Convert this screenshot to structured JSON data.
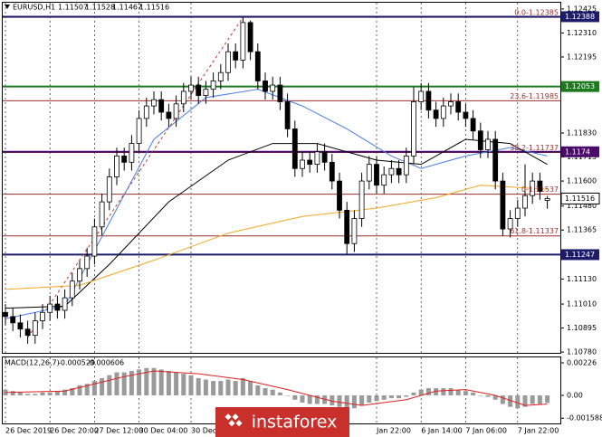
{
  "chart_data": {
    "type": "candlestick",
    "title": "EURUSD,H1",
    "open": [
      1.1097,
      1.1095,
      1.1092,
      1.1089,
      1.1086,
      1.1093,
      1.1097,
      1.1101,
      1.1098,
      1.1104,
      1.1112,
      1.1118,
      1.1124,
      1.1138,
      1.115,
      1.1162,
      1.1172,
      1.1169,
      1.1178,
      1.119,
      1.1196,
      1.1199,
      1.1193,
      1.119,
      1.1197,
      1.1203,
      1.1206,
      1.1201,
      1.1204,
      1.1208,
      1.1212,
      1.1222,
      1.1218,
      1.1236,
      1.1222,
      1.1208,
      1.1203,
      1.1206,
      1.1198,
      1.1185,
      1.1166,
      1.117,
      1.1168,
      1.1174,
      1.1169,
      1.116,
      1.1146,
      1.113,
      1.1142,
      1.116,
      1.1168,
      1.1158,
      1.1163,
      1.1166,
      1.1163,
      1.1172,
      1.1198,
      1.1203,
      1.1194,
      1.119,
      1.1196,
      1.1198,
      1.1193,
      1.119,
      1.1184,
      1.1175,
      1.118,
      1.116,
      1.1137,
      1.1142,
      1.1147,
      1.1153,
      1.116,
      1.11507
    ],
    "high": [
      1.1101,
      1.1099,
      1.1096,
      1.1093,
      1.1097,
      1.1101,
      1.1105,
      1.1105,
      1.1108,
      1.1116,
      1.1122,
      1.1128,
      1.1142,
      1.1154,
      1.1166,
      1.1176,
      1.1176,
      1.1182,
      1.1194,
      1.12,
      1.1203,
      1.1203,
      1.1197,
      1.1201,
      1.1207,
      1.121,
      1.121,
      1.1208,
      1.1212,
      1.1216,
      1.1226,
      1.1226,
      1.12385,
      1.1237,
      1.1226,
      1.1212,
      1.121,
      1.121,
      1.1202,
      1.1189,
      1.1174,
      1.1174,
      1.1178,
      1.1178,
      1.1173,
      1.1164,
      1.115,
      1.1146,
      1.1164,
      1.1172,
      1.1172,
      1.1167,
      1.117,
      1.117,
      1.1176,
      1.1205,
      1.1207,
      1.1207,
      1.1198,
      1.12,
      1.1202,
      1.1202,
      1.1197,
      1.1194,
      1.1188,
      1.1184,
      1.1184,
      1.1164,
      1.1146,
      1.1151,
      1.1168,
      1.1164,
      1.1164,
      1.11528
    ],
    "low": [
      1.1091,
      1.1088,
      1.1085,
      1.1082,
      1.1082,
      1.1089,
      1.1093,
      1.1094,
      1.1094,
      1.11,
      1.1108,
      1.1114,
      1.112,
      1.1134,
      1.1146,
      1.1158,
      1.1165,
      1.1165,
      1.1174,
      1.1186,
      1.1192,
      1.1189,
      1.1186,
      1.1186,
      1.1193,
      1.1199,
      1.1197,
      1.1197,
      1.12,
      1.1204,
      1.1208,
      1.1214,
      1.1214,
      1.1218,
      1.1204,
      1.1199,
      1.1199,
      1.1194,
      1.1181,
      1.1162,
      1.1162,
      1.1164,
      1.1164,
      1.1165,
      1.1156,
      1.1142,
      1.1125,
      1.1126,
      1.1138,
      1.1156,
      1.1154,
      1.1154,
      1.1159,
      1.1159,
      1.1159,
      1.1168,
      1.1194,
      1.119,
      1.1186,
      1.1186,
      1.1192,
      1.1189,
      1.1186,
      1.118,
      1.1171,
      1.1171,
      1.1156,
      1.11337,
      1.1133,
      1.1138,
      1.1143,
      1.1149,
      1.1151,
      1.11467
    ],
    "close": [
      1.1095,
      1.1092,
      1.1089,
      1.1086,
      1.1093,
      1.1097,
      1.1101,
      1.1098,
      1.1104,
      1.1112,
      1.1118,
      1.1124,
      1.1138,
      1.115,
      1.1162,
      1.1172,
      1.1169,
      1.1178,
      1.119,
      1.1196,
      1.1199,
      1.1193,
      1.119,
      1.1197,
      1.1203,
      1.1206,
      1.1201,
      1.1204,
      1.1208,
      1.1212,
      1.1222,
      1.1218,
      1.1236,
      1.1222,
      1.1208,
      1.1203,
      1.1206,
      1.1198,
      1.1185,
      1.1166,
      1.117,
      1.1168,
      1.1174,
      1.1169,
      1.116,
      1.1146,
      1.113,
      1.1142,
      1.116,
      1.1168,
      1.1158,
      1.1163,
      1.1166,
      1.1163,
      1.1172,
      1.1198,
      1.1203,
      1.1194,
      1.119,
      1.1196,
      1.1198,
      1.1193,
      1.119,
      1.1184,
      1.1175,
      1.118,
      1.116,
      1.1137,
      1.1142,
      1.1147,
      1.1153,
      1.116,
      1.1155,
      1.11516
    ],
    "candle_color": "#000000",
    "ylim": [
      1.10776,
      1.12455
    ],
    "yticks": [
      1.12425,
      {
        "value": 1.1231,
        "label": "1.12310"
      },
      1.12195,
      {
        "value": 1.1183,
        "label": "1.11830"
      },
      1.11715,
      {
        "value": 1.116,
        "label": "1.11600"
      },
      {
        "value": 1.1148,
        "label": "1.11480"
      },
      1.11365,
      {
        "value": 1.1113,
        "label": "1.11130"
      },
      {
        "value": 1.1101,
        "label": "1.11010"
      },
      1.10895,
      {
        "value": 1.1078,
        "label": "1.10780"
      }
    ],
    "time_labels": [
      {
        "index": 0,
        "label": "26 Dec 2019"
      },
      {
        "index": 6,
        "label": "26 Dec 20:00"
      },
      {
        "index": 12,
        "label": "27 Dec 12:00"
      },
      {
        "index": 18,
        "label": "30 Dec 04:00"
      },
      {
        "index": 25,
        "label": "30 Dec 20:00"
      },
      {
        "index": 50,
        "label": "Jan 22:00"
      },
      {
        "index": 56,
        "label": "6 Jan 14:00"
      },
      {
        "index": 62,
        "label": "7 Jan 06:00"
      },
      {
        "index": 69,
        "label": "7 Jan 22:00"
      }
    ],
    "moving_averages": [
      {
        "color": "#4a7de8",
        "x": [
          0,
          8,
          14,
          20,
          27,
          34,
          40,
          46,
          52,
          56,
          62,
          68,
          73
        ],
        "values": [
          1.1094,
          1.11,
          1.114,
          1.118,
          1.12,
          1.1204,
          1.1196,
          1.1185,
          1.1172,
          1.1166,
          1.1172,
          1.1176,
          1.1172
        ]
      },
      {
        "color": "#000000",
        "x": [
          0,
          8,
          14,
          22,
          30,
          36,
          42,
          50,
          56,
          62,
          68,
          73
        ],
        "values": [
          1.1099,
          1.11,
          1.112,
          1.115,
          1.117,
          1.1178,
          1.1178,
          1.117,
          1.1168,
          1.118,
          1.1178,
          1.1168
        ]
      },
      {
        "color": "#f5a623",
        "x": [
          0,
          10,
          20,
          30,
          40,
          50,
          58,
          64,
          73
        ],
        "values": [
          1.1108,
          1.111,
          1.1122,
          1.1135,
          1.1143,
          1.1147,
          1.1152,
          1.1158,
          1.1156
        ]
      }
    ],
    "trend_line": {
      "color": "#c0392b",
      "x": [
        3,
        32
      ],
      "values": [
        1.1085,
        1.12385
      ]
    },
    "levels": [
      {
        "value": 1.12388,
        "color": "#1c1c6b"
      },
      {
        "value": 1.12053,
        "color": "#1e7a1e"
      },
      {
        "value": 1.1174,
        "color": "#4b0a6b"
      },
      {
        "value": 1.11247,
        "color": "#1c1c6b"
      }
    ],
    "fib_levels": [
      {
        "value": 1.12385,
        "label": "0.0-1.12385"
      },
      {
        "value": 1.11985,
        "label": "23.6-1.11985"
      },
      {
        "value": 1.11737,
        "label": "38.2-1.11737"
      },
      {
        "value": 1.11537,
        "label": "0-1.11537"
      },
      {
        "value": 1.11337,
        "label": "61.8-1.11337"
      }
    ],
    "fib_color": "#9b2d2d",
    "macd": {
      "title": "MACD(12,26,7)",
      "histogram": [
        0.0004,
        0.0003,
        0.0002,
        0.0001,
        0.0001,
        0.0002,
        0.0002,
        0.0003,
        0.0004,
        0.0005,
        0.0007,
        0.0008,
        0.001,
        0.0012,
        0.0014,
        0.0016,
        0.0016,
        0.0017,
        0.0018,
        0.0019,
        0.0019,
        0.0018,
        0.0017,
        0.0016,
        0.0015,
        0.0014,
        0.0012,
        0.0011,
        0.001,
        0.001,
        0.0011,
        0.001,
        0.0012,
        0.001,
        0.0007,
        0.0005,
        0.0004,
        0.0002,
        0,
        -0.0003,
        -0.0005,
        -0.0006,
        -0.0006,
        -0.0006,
        -0.0007,
        -0.0008,
        -0.0009,
        -0.0009,
        -0.0007,
        -0.0005,
        -0.0004,
        -0.0003,
        -0.0002,
        -0.0002,
        -0.0001,
        0.0002,
        0.0004,
        0.0005,
        0.0005,
        0.0005,
        0.0005,
        0.0004,
        0.0003,
        0.0002,
        0,
        -0.0001,
        -0.0003,
        -0.0006,
        -0.0008,
        -0.0009,
        -0.0008,
        -0.0006,
        -0.0006,
        -0.000529
      ],
      "histogram_color": "#9a9a9a",
      "signal": {
        "color": "#e02020",
        "x": [
          0,
          8,
          16,
          20,
          26,
          32,
          38,
          44,
          48,
          54,
          58,
          62,
          66,
          70,
          73
        ],
        "values": [
          0.0002,
          0.0003,
          0.0013,
          0.0017,
          0.0015,
          0.0011,
          0.0004,
          -0.0004,
          -0.0007,
          -0.0003,
          0.0003,
          0.0004,
          0,
          -0.0007,
          -0.000606
        ]
      },
      "ylim": [
        -0.00195,
        0.00264
      ],
      "yticks": [
        0.00226,
        {
          "value": 0,
          "label": "0.00"
        },
        -0.001588
      ]
    },
    "watermark": "instaforex"
  }
}
